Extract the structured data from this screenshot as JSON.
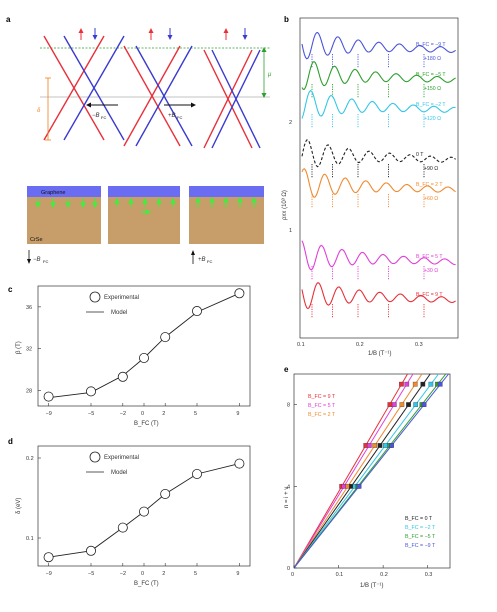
{
  "panels": {
    "a": {
      "letter": "a",
      "arrow_left_label": "−B",
      "arrow_right_label": "+B",
      "fc_sub": "FC",
      "delta_label": "δ",
      "mu_label": "μ",
      "graphene_label": "Graphene",
      "crse_label": "CrSe",
      "bottom_left_arrow": "−B",
      "bottom_right_arrow": "+B",
      "colors": {
        "red": "#e8303a",
        "blue": "#3a3ad0",
        "green": "#2ea02e",
        "orange": "#f08020",
        "slab": "#6a6cf2",
        "substrate": "#c79d6a"
      }
    },
    "b": {
      "letter": "b",
      "ylabel": "ρxx (10³ Ω)",
      "xlabel": "1/B (T⁻¹)",
      "yticks": [
        "1",
        "2"
      ],
      "xticks": [
        "0.1",
        "0.2",
        "0.3"
      ],
      "curves": [
        {
          "field": "B_FC = −9 T",
          "offset": "+180 Ω",
          "color": "#4a55d8"
        },
        {
          "field": "B_FC = −5 T",
          "offset": "+150 Ω",
          "color": "#2ea02e"
        },
        {
          "field": "B_FC = −2 T",
          "offset": "+120 Ω",
          "color": "#34c6e8"
        },
        {
          "field": "0 T",
          "offset": "+90 Ω",
          "color": "#222222"
        },
        {
          "field": "B_FC = 2 T",
          "offset": "+60 Ω",
          "color": "#f08a30"
        },
        {
          "field": "B_FC = 5 T",
          "offset": "+30 Ω",
          "color": "#e040d8"
        },
        {
          "field": "B_FC = 9 T",
          "offset": "",
          "color": "#e8303a"
        }
      ]
    },
    "c": {
      "letter": "c",
      "legend_exp": "Experimental",
      "legend_model": "Model"
    },
    "d": {
      "letter": "d",
      "legend_exp": "Experimental",
      "legend_model": "Model"
    },
    "e": {
      "letter": "e",
      "ylabel": "n = i + ν",
      "xlabel": "1/B (T⁻¹)",
      "xticks": [
        "0",
        "0.1",
        "0.2",
        "0.3"
      ],
      "yticks": [
        "0",
        "4",
        "8"
      ],
      "legend_top": [
        {
          "label": "B_FC = 9 T",
          "color": "#e8303a"
        },
        {
          "label": "B_FC = 5 T",
          "color": "#e040d8"
        },
        {
          "label": "B_FC = 2 T",
          "color": "#f08a30"
        }
      ],
      "legend_bottom": [
        {
          "label": "B_FC = 0 T",
          "color": "#222222"
        },
        {
          "label": "B_FC = −2 T",
          "color": "#34c6e8"
        },
        {
          "label": "B_FC = −5 T",
          "color": "#2ea02e"
        },
        {
          "label": "B_FC = −9 T",
          "color": "#4a55d8"
        }
      ]
    }
  },
  "chart_data": [
    {
      "type": "line",
      "panel": "c",
      "x": [
        -9,
        -5,
        -2,
        0,
        2,
        5,
        9
      ],
      "values_experimental": [
        27.4,
        27.9,
        29.3,
        31.1,
        33.1,
        35.6,
        37.3
      ],
      "values_model": [
        27.3,
        27.8,
        29.4,
        31.1,
        33.1,
        35.5,
        37.3
      ],
      "series": [
        {
          "name": "Experimental"
        },
        {
          "name": "Model"
        }
      ],
      "xlabel": "B_FC (T)",
      "ylabel": "β (T)",
      "xticks": [
        "−9",
        "−5",
        "−2",
        "0",
        "2",
        "5",
        "9"
      ],
      "yticks": [
        "28",
        "32",
        "36"
      ],
      "xlim": [
        -10,
        10
      ],
      "ylim": [
        26.5,
        38
      ]
    },
    {
      "type": "line",
      "panel": "d",
      "x": [
        -9,
        -5,
        -2,
        0,
        2,
        5,
        9
      ],
      "values_experimental": [
        0.076,
        0.084,
        0.113,
        0.133,
        0.155,
        0.18,
        0.193
      ],
      "values_model": [
        0.076,
        0.084,
        0.113,
        0.133,
        0.155,
        0.18,
        0.193
      ],
      "series": [
        {
          "name": "Experimental"
        },
        {
          "name": "Model"
        }
      ],
      "xlabel": "B_FC (T)",
      "ylabel": "δ (eV)",
      "xticks": [
        "−9",
        "−5",
        "−2",
        "0",
        "2",
        "5",
        "9"
      ],
      "yticks": [
        "0.1",
        "0.2"
      ],
      "xlim": [
        -10,
        10
      ],
      "ylim": [
        0.065,
        0.215
      ]
    },
    {
      "type": "scatter",
      "panel": "e",
      "xlim": [
        0,
        0.35
      ],
      "ylim": [
        0,
        9.5
      ],
      "series": [
        {
          "name": "B_FC = 9 T",
          "color": "#e8303a",
          "slope": 37.3,
          "x": [
            0.107,
            0.161,
            0.215,
            0.241
          ]
        },
        {
          "name": "B_FC = 5 T",
          "color": "#e040d8",
          "slope": 35.6,
          "x": [
            0.112,
            0.169,
            0.225,
            0.253
          ]
        },
        {
          "name": "B_FC = 2 T",
          "color": "#f08a30",
          "slope": 33.1,
          "x": [
            0.121,
            0.181,
            0.242,
            0.272
          ]
        },
        {
          "name": "B_FC = 0 T",
          "color": "#222222",
          "slope": 31.1,
          "x": [
            0.129,
            0.193,
            0.257,
            0.289
          ]
        },
        {
          "name": "B_FC = −2 T",
          "color": "#34c6e8",
          "slope": 29.3,
          "x": [
            0.137,
            0.205,
            0.273,
            0.307
          ]
        },
        {
          "name": "B_FC = −5 T",
          "color": "#2ea02e",
          "slope": 27.9,
          "x": [
            0.143,
            0.215,
            0.287,
            0.322
          ]
        },
        {
          "name": "B_FC = −9 T",
          "color": "#4a55d8",
          "slope": 27.4,
          "x": [
            0.146,
            0.219,
            0.292,
            0.328
          ]
        }
      ],
      "y_levels": [
        4,
        6,
        8,
        9
      ]
    }
  ]
}
